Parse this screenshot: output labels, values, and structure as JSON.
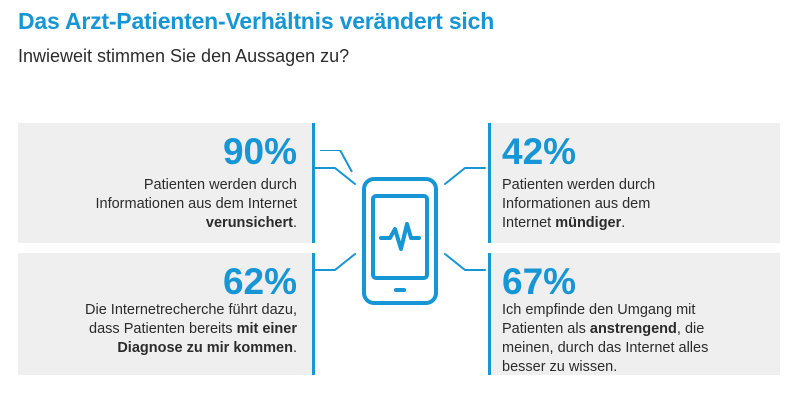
{
  "header": {
    "title": "Das Arzt-Patienten-Verhältnis verändert sich",
    "subtitle": "Inwieweit stimmen Sie den Aussagen zu?"
  },
  "stats": {
    "top_left": {
      "percent": "90%",
      "line1": "Patienten werden durch",
      "line2": "Informationen aus dem Internet",
      "line3_bold": "verunsichert",
      "line3_end": "."
    },
    "top_right": {
      "percent": "42%",
      "line1": "Patienten werden durch",
      "line2": "Informationen aus dem",
      "line3_start": "Internet ",
      "line3_bold": "mündiger",
      "line3_end": "."
    },
    "bottom_left": {
      "percent": "62%",
      "line1": "Die Internetrecherche führt dazu,",
      "line2_start": "dass Patienten bereits ",
      "line2_bold": "mit einer",
      "line3_bold": "Diagnose zu mir kommen",
      "line3_end": "."
    },
    "bottom_right": {
      "percent": "67%",
      "line1": "Ich empfinde den Umgang mit",
      "line2_start": "Patienten als ",
      "line2_bold": "anstrengend",
      "line2_end": ", die",
      "line3": "meinen, durch das Internet alles",
      "line4": "besser zu wissen."
    }
  },
  "colors": {
    "accent": "#1796d5",
    "panel": "#efefef",
    "text": "#2b2b2b"
  },
  "icons": {
    "center": "smartphone-heartbeat-icon"
  }
}
